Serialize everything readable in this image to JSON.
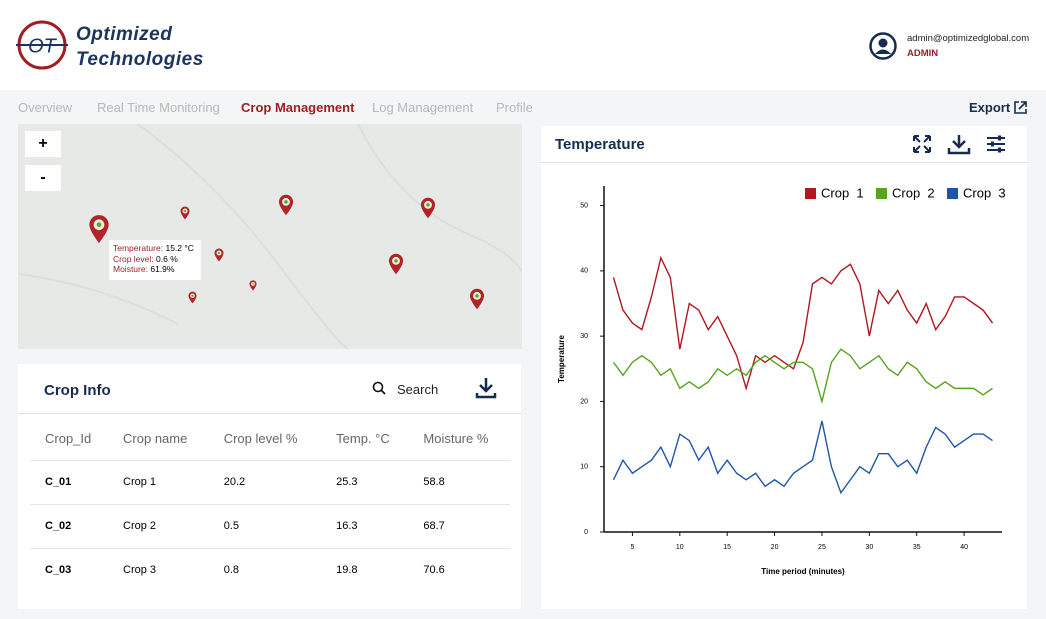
{
  "header": {
    "logo_mark": "OT",
    "logo_line1": "Optimized",
    "logo_line2": "Technologies",
    "email": "admin@optimizedglobal.com",
    "role": "ADMIN"
  },
  "nav": {
    "items": [
      "Overview",
      "Real Time Monitoring",
      "Crop Management",
      "Log Management",
      "Profile"
    ],
    "export": "Export"
  },
  "map": {
    "zoom_in": "+",
    "zoom_out": "-",
    "tooltip": [
      [
        "Temperature:",
        "15.2 °C"
      ],
      [
        "Crop level:",
        "0.6 %"
      ],
      [
        "Moisture:",
        "61.9%"
      ]
    ]
  },
  "crop_info": {
    "title": "Crop Info",
    "search": "Search",
    "columns": [
      "Crop_Id",
      "Crop name",
      "Crop level %",
      "Temp. °C",
      "Moisture %"
    ],
    "rows": [
      [
        "C_01",
        "Crop 1",
        "20.2",
        "25.3",
        "58.8"
      ],
      [
        "C_02",
        "Crop 2",
        "0.5",
        "16.3",
        "68.7"
      ],
      [
        "C_03",
        "Crop 3",
        "0.8",
        "19.8",
        "70.6"
      ]
    ]
  },
  "chart_data": {
    "type": "line",
    "title": "Temperature",
    "xlabel": "Time period (minutes)",
    "ylabel": "Temperature",
    "x": [
      3,
      4,
      5,
      6,
      7,
      8,
      9,
      10,
      11,
      12,
      13,
      14,
      15,
      16,
      17,
      18,
      19,
      20,
      21,
      22,
      23,
      24,
      25,
      26,
      27,
      28,
      29,
      30,
      31,
      32,
      33,
      34,
      35,
      36,
      37,
      38,
      39,
      40,
      41,
      42,
      43
    ],
    "series": [
      {
        "name": "Crop  1",
        "color": "#b0171f",
        "values": [
          39,
          34,
          32,
          31,
          36,
          42,
          39,
          28,
          35,
          34,
          31,
          33,
          30,
          27,
          22,
          27,
          26,
          27,
          26,
          25,
          29,
          38,
          39,
          38,
          40,
          41,
          38,
          30,
          37,
          35,
          37,
          34,
          32,
          35,
          31,
          33,
          36,
          36,
          35,
          34,
          32
        ]
      },
      {
        "name": "Crop  2",
        "color": "#55a51c",
        "values": [
          26,
          24,
          26,
          27,
          26,
          24,
          25,
          22,
          23,
          22,
          23,
          25,
          24,
          25,
          24,
          26,
          27,
          26,
          25,
          26,
          26,
          25,
          20,
          26,
          28,
          27,
          25,
          26,
          27,
          25,
          24,
          26,
          25,
          23,
          22,
          23,
          22,
          22,
          22,
          21,
          22
        ]
      },
      {
        "name": "Crop  3",
        "color": "#1d56a8",
        "values": [
          8,
          11,
          9,
          10,
          11,
          13,
          10,
          15,
          14,
          11,
          13,
          9,
          11,
          9,
          8,
          9,
          7,
          8,
          7,
          9,
          10,
          11,
          17,
          10,
          6,
          8,
          10,
          9,
          12,
          12,
          10,
          11,
          9,
          13,
          16,
          15,
          13,
          14,
          15,
          15,
          14
        ]
      }
    ],
    "xlim": [
      2,
      44
    ],
    "xticks": [
      5,
      10,
      15,
      20,
      25,
      30,
      35,
      40
    ],
    "ylim": [
      0,
      53
    ],
    "yticks": [
      0,
      10,
      20,
      30,
      40,
      50
    ],
    "legend": "top-right"
  }
}
